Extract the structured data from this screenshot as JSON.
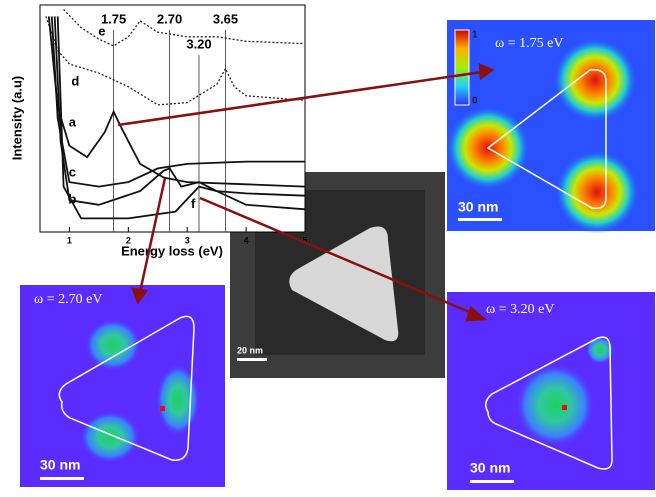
{
  "chart_data": {
    "type": "line",
    "x_label": "Energy loss (eV)",
    "y_label": "Intensity (a.u)",
    "xlim": [
      0.5,
      5
    ],
    "xticks": [
      1,
      2,
      3,
      4,
      5
    ],
    "ylim": [
      0,
      100
    ],
    "peaks": [
      {
        "value": 1.75,
        "label": "1.75"
      },
      {
        "value": 2.7,
        "label": "2.70"
      },
      {
        "value": 3.2,
        "label": "3.20"
      },
      {
        "value": 3.65,
        "label": "3.65"
      }
    ],
    "series": [
      {
        "name": "e",
        "color": "#222222",
        "style": "dotted",
        "x": [
          0.9,
          1.2,
          1.5,
          1.75,
          2.0,
          2.2,
          2.5,
          3.0,
          3.5,
          4.0,
          5.0
        ],
        "values": [
          98,
          90,
          85,
          82,
          86,
          93,
          88,
          86,
          86,
          84,
          83
        ]
      },
      {
        "name": "d",
        "color": "#222222",
        "style": "dotted",
        "x": [
          0.6,
          0.8,
          1.0,
          1.5,
          2.0,
          2.5,
          3.0,
          3.5,
          3.65,
          3.8,
          4.0,
          5.0
        ],
        "values": [
          95,
          80,
          74,
          70,
          64,
          56,
          57,
          65,
          72,
          64,
          60,
          58
        ]
      },
      {
        "name": "a",
        "color": "#111111",
        "style": "solid",
        "x": [
          0.65,
          0.8,
          1.0,
          1.3,
          1.6,
          1.75,
          1.9,
          2.2,
          2.6,
          3.0,
          4.0,
          5.0
        ],
        "values": [
          95,
          55,
          38,
          33,
          44,
          53,
          45,
          30,
          24,
          22,
          21,
          20
        ]
      },
      {
        "name": "c",
        "color": "#111111",
        "style": "solid",
        "x": [
          0.7,
          0.8,
          1.0,
          1.5,
          2.0,
          2.5,
          3.0,
          4.0,
          5.0
        ],
        "values": [
          95,
          50,
          22,
          20,
          22,
          28,
          30,
          31,
          31
        ]
      },
      {
        "name": "b",
        "color": "#111111",
        "style": "solid",
        "x": [
          0.75,
          0.85,
          1.0,
          1.5,
          2.2,
          2.6,
          2.7,
          2.9,
          3.2,
          3.5,
          4.0,
          5.0
        ],
        "values": [
          95,
          40,
          14,
          12,
          18,
          27,
          28,
          20,
          22,
          18,
          17,
          16
        ]
      },
      {
        "name": "f",
        "color": "#111111",
        "style": "solid",
        "x": [
          0.8,
          0.9,
          1.2,
          2.0,
          2.8,
          3.2,
          3.5,
          4.0,
          5.0
        ],
        "values": [
          95,
          20,
          6,
          6,
          9,
          20,
          18,
          12,
          10
        ]
      }
    ]
  },
  "panels": [
    {
      "label": "ω = 1.75 eV",
      "scale": "30 nm",
      "colorbar": [
        "1",
        "0"
      ]
    },
    {
      "label": "ω = 2.70 eV",
      "scale": "30 nm"
    },
    {
      "label": "ω = 3.20 eV",
      "scale": "30 nm"
    }
  ],
  "stem_scale": "20 nm"
}
